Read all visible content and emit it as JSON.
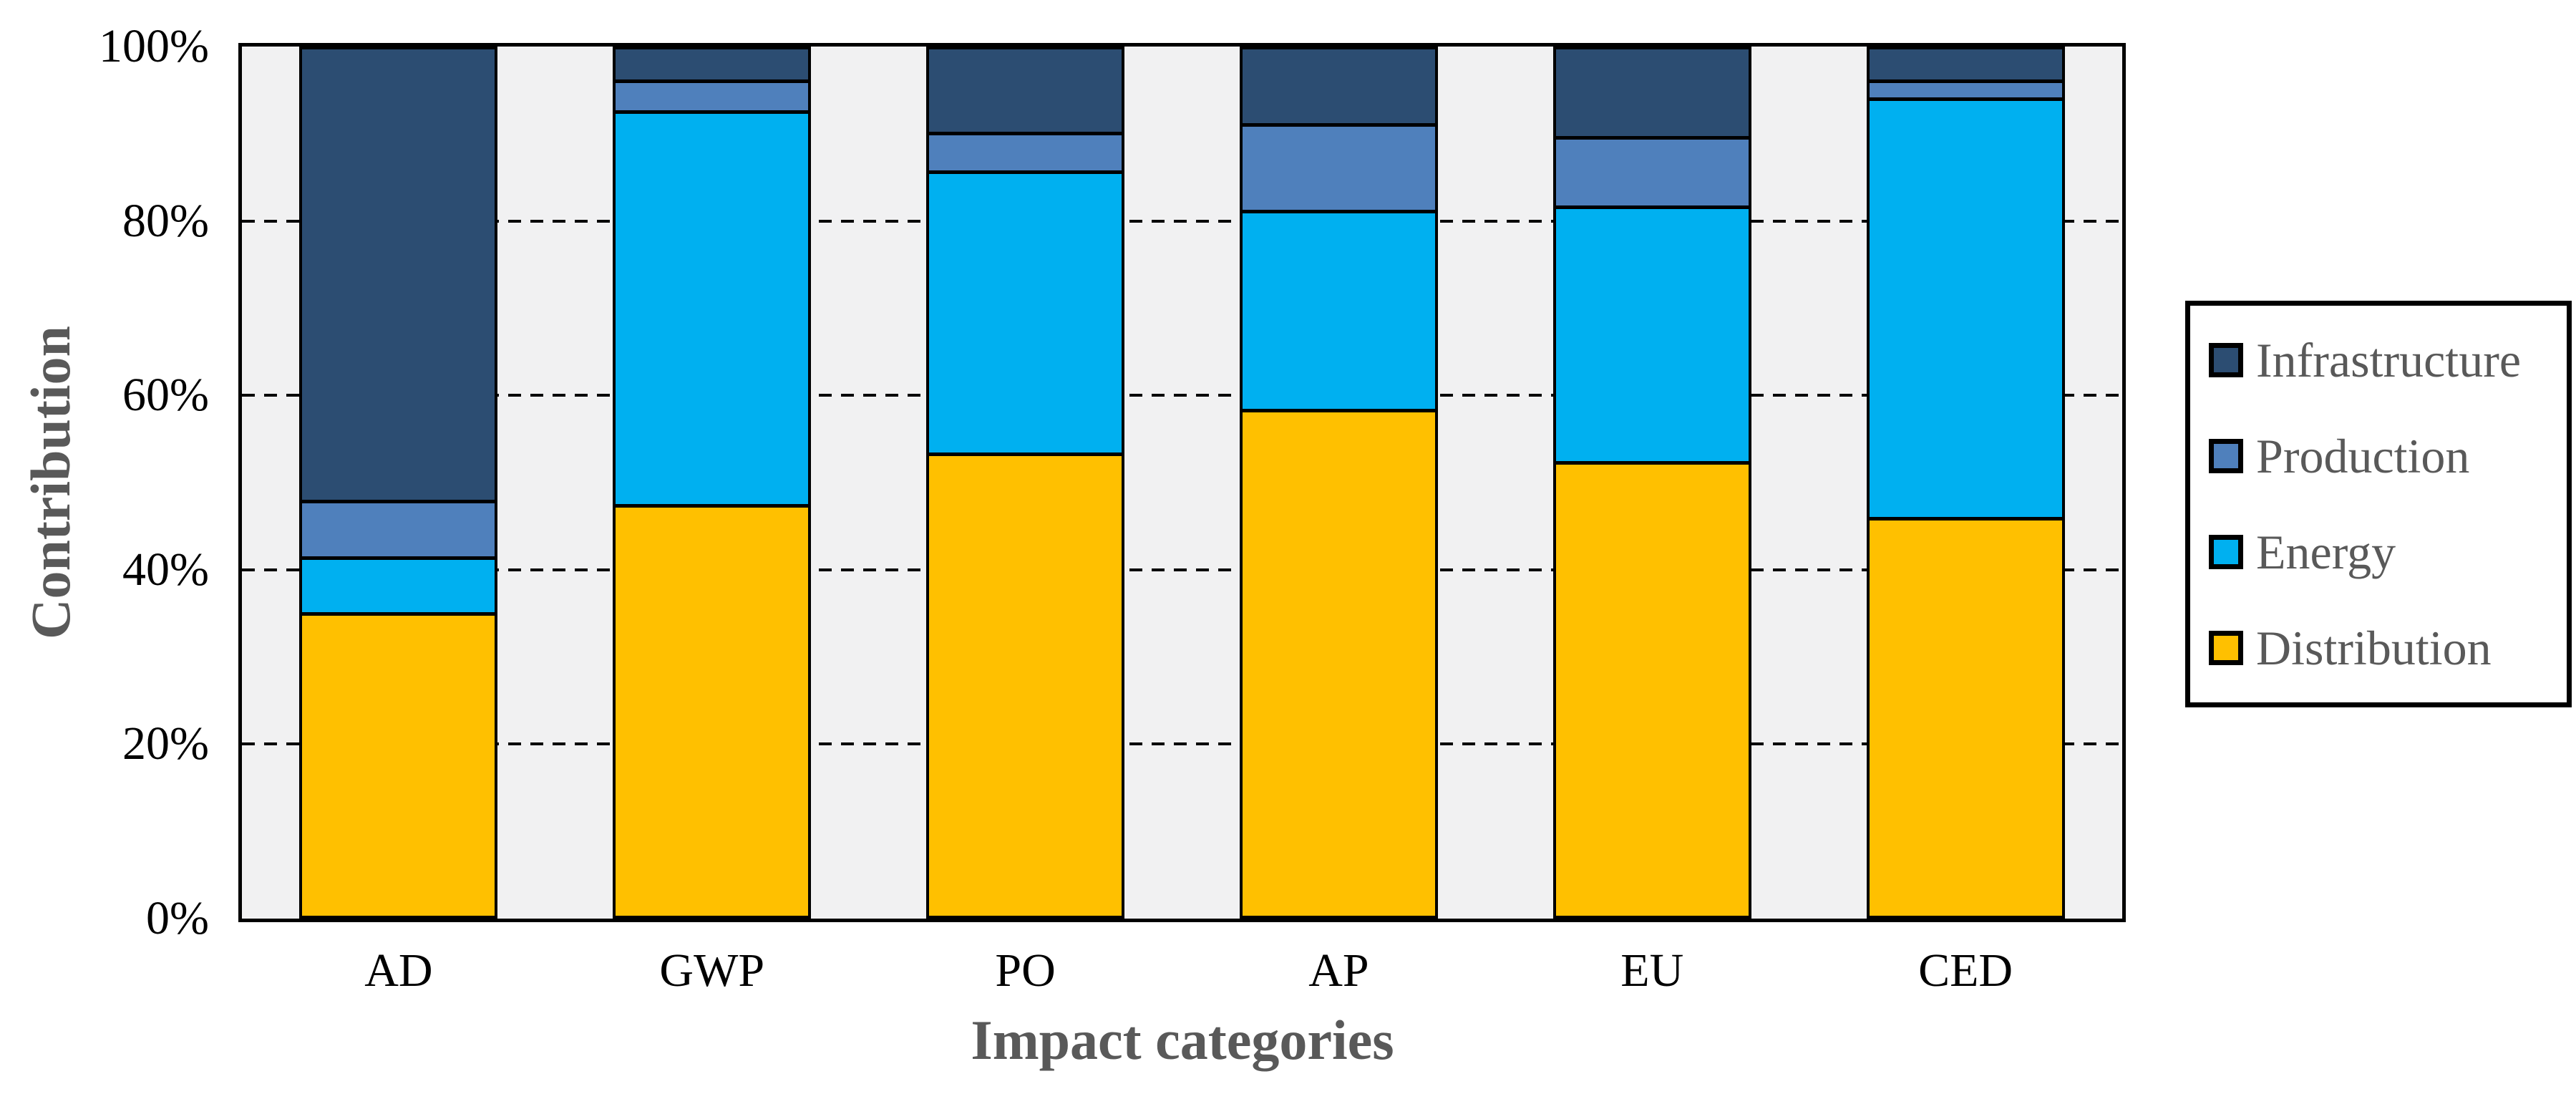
{
  "chart_data": {
    "type": "bar",
    "variant": "stacked-100-percent",
    "title": "",
    "xlabel": "Impact categories",
    "ylabel": "Contribution",
    "categories": [
      "AD",
      "GWP",
      "PO",
      "AP",
      "EU",
      "CED"
    ],
    "series": [
      {
        "name": "Distribution",
        "color": "#FFC000",
        "values": [
          35,
          47.5,
          53.5,
          58.5,
          52.5,
          46
        ]
      },
      {
        "name": "Energy",
        "color": "#00B0F0",
        "values": [
          6.5,
          45.5,
          32.5,
          23,
          29.5,
          48.5
        ]
      },
      {
        "name": "Production",
        "color": "#4F80BC",
        "values": [
          6.5,
          3.5,
          4.5,
          10,
          8,
          2
        ]
      },
      {
        "name": "Infrastructure",
        "color": "#2C4D72",
        "values": [
          52,
          3.5,
          9.5,
          8.5,
          10,
          3.5
        ]
      }
    ],
    "y_ticks": [
      {
        "label": "0%",
        "value": 0
      },
      {
        "label": "20%",
        "value": 20
      },
      {
        "label": "40%",
        "value": 40
      },
      {
        "label": "60%",
        "value": 60
      },
      {
        "label": "80%",
        "value": 80
      },
      {
        "label": "100%",
        "value": 100
      }
    ],
    "ylim": [
      0,
      100
    ],
    "grid": {
      "style": "dashed",
      "horizontal_at": [
        20,
        40,
        60,
        80
      ]
    },
    "legend": {
      "position": "right",
      "order": [
        "Infrastructure",
        "Production",
        "Energy",
        "Distribution"
      ]
    }
  },
  "styles": {
    "plot_background": "#F1F1F2",
    "page_background": "#FFFFFF",
    "axis_title_color": "#595959",
    "tick_label_color": "#000000",
    "legend_text_color": "#595959",
    "outline_color": "#000000"
  }
}
